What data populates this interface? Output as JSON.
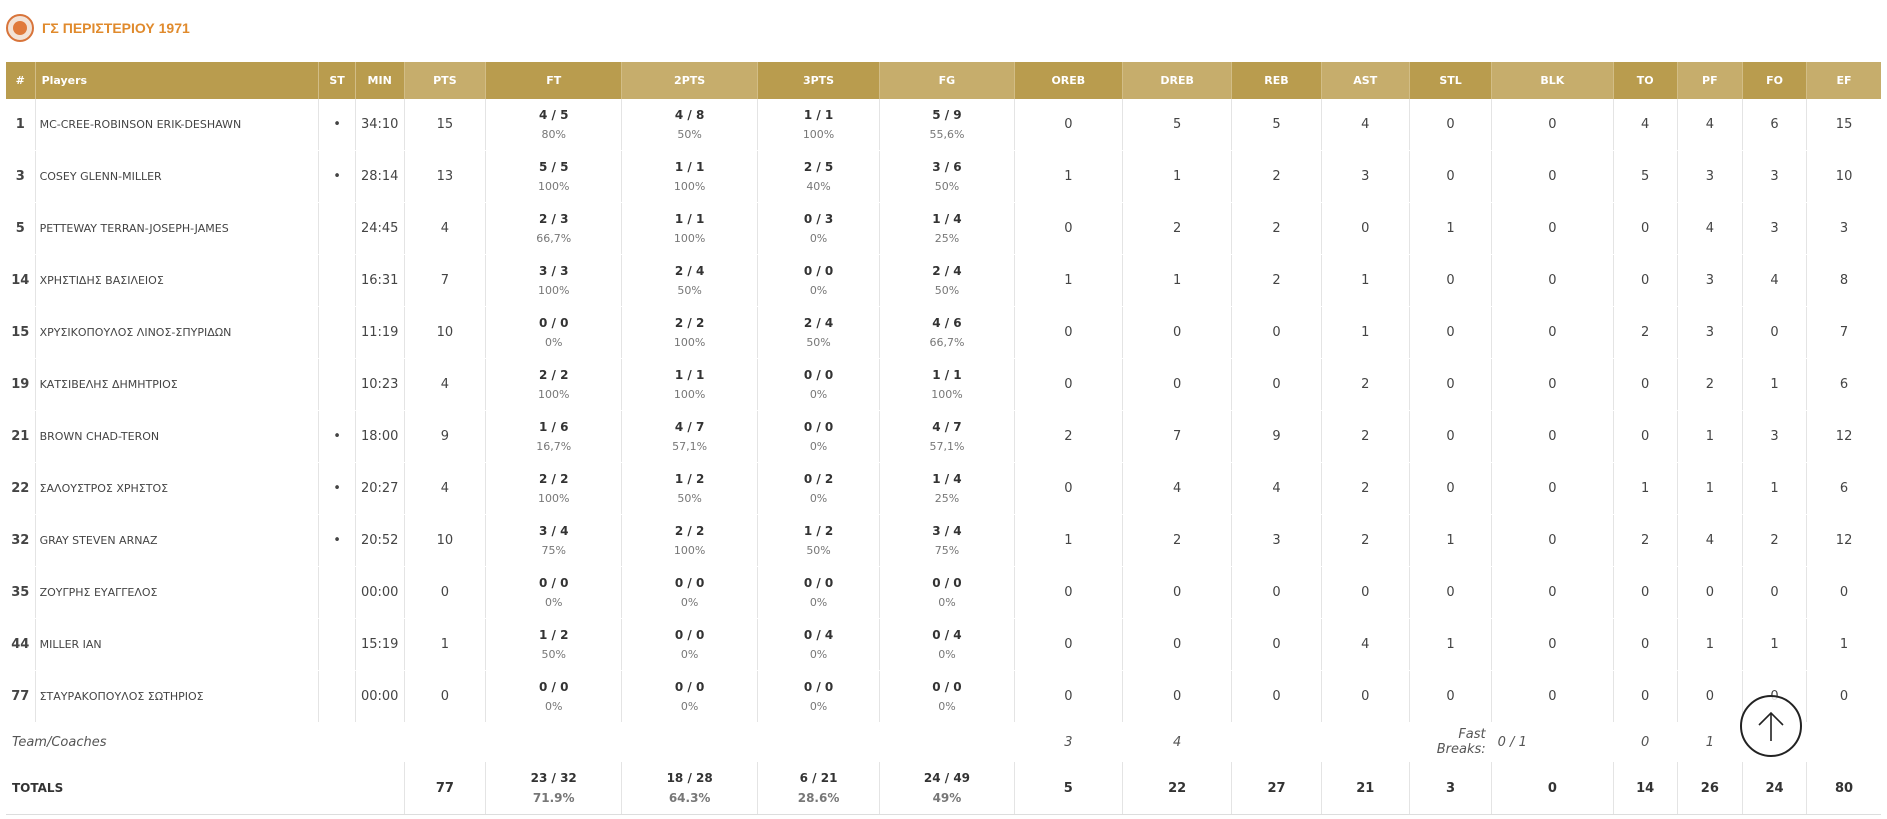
{
  "team": {
    "name": "ΓΣ ΠΕΡΙΣΤΕΡΙΟΥ 1971",
    "logo_icon": "team-logo-icon",
    "accent": "#e08a2c"
  },
  "header_color": "#b99c4e",
  "columns": [
    "#",
    "Players",
    "ST",
    "MIN",
    "PTS",
    "FT",
    "2PTS",
    "3PTS",
    "FG",
    "OREB",
    "DREB",
    "REB",
    "AST",
    "STL",
    "BLK",
    "TO",
    "PF",
    "FO",
    "EF"
  ],
  "players": [
    {
      "num": "1",
      "name": "MC-CREE-ROBINSON ERIK-DESHAWN",
      "st": "•",
      "min": "34:10",
      "pts": "15",
      "ft": "4 / 5",
      "ft_pct": "80%",
      "p2": "4 / 8",
      "p2_pct": "50%",
      "p3": "1 / 1",
      "p3_pct": "100%",
      "fg": "5 / 9",
      "fg_pct": "55,6%",
      "oreb": "0",
      "dreb": "5",
      "reb": "5",
      "ast": "4",
      "stl": "0",
      "blk": "0",
      "to": "4",
      "pf": "4",
      "fo": "6",
      "ef": "15"
    },
    {
      "num": "3",
      "name": "COSEY GLENN-MILLER",
      "st": "•",
      "min": "28:14",
      "pts": "13",
      "ft": "5 / 5",
      "ft_pct": "100%",
      "p2": "1 / 1",
      "p2_pct": "100%",
      "p3": "2 / 5",
      "p3_pct": "40%",
      "fg": "3 / 6",
      "fg_pct": "50%",
      "oreb": "1",
      "dreb": "1",
      "reb": "2",
      "ast": "3",
      "stl": "0",
      "blk": "0",
      "to": "5",
      "pf": "3",
      "fo": "3",
      "ef": "10"
    },
    {
      "num": "5",
      "name": "PETTEWAY TERRAN-JOSEPH-JAMES",
      "st": "",
      "min": "24:45",
      "pts": "4",
      "ft": "2 / 3",
      "ft_pct": "66,7%",
      "p2": "1 / 1",
      "p2_pct": "100%",
      "p3": "0 / 3",
      "p3_pct": "0%",
      "fg": "1 / 4",
      "fg_pct": "25%",
      "oreb": "0",
      "dreb": "2",
      "reb": "2",
      "ast": "0",
      "stl": "1",
      "blk": "0",
      "to": "0",
      "pf": "4",
      "fo": "3",
      "ef": "3"
    },
    {
      "num": "14",
      "name": "ΧΡΗΣΤΙΔΗΣ ΒΑΣΙΛΕΙΟΣ",
      "st": "",
      "min": "16:31",
      "pts": "7",
      "ft": "3 / 3",
      "ft_pct": "100%",
      "p2": "2 / 4",
      "p2_pct": "50%",
      "p3": "0 / 0",
      "p3_pct": "0%",
      "fg": "2 / 4",
      "fg_pct": "50%",
      "oreb": "1",
      "dreb": "1",
      "reb": "2",
      "ast": "1",
      "stl": "0",
      "blk": "0",
      "to": "0",
      "pf": "3",
      "fo": "4",
      "ef": "8"
    },
    {
      "num": "15",
      "name": "ΧΡΥΣΙΚΟΠΟΥΛΟΣ ΛΙΝΟΣ-ΣΠΥΡΙΔΩΝ",
      "st": "",
      "min": "11:19",
      "pts": "10",
      "ft": "0 / 0",
      "ft_pct": "0%",
      "p2": "2 / 2",
      "p2_pct": "100%",
      "p3": "2 / 4",
      "p3_pct": "50%",
      "fg": "4 / 6",
      "fg_pct": "66,7%",
      "oreb": "0",
      "dreb": "0",
      "reb": "0",
      "ast": "1",
      "stl": "0",
      "blk": "0",
      "to": "2",
      "pf": "3",
      "fo": "0",
      "ef": "7"
    },
    {
      "num": "19",
      "name": "ΚΑΤΣΙΒΕΛΗΣ ΔΗΜΗΤΡΙΟΣ",
      "st": "",
      "min": "10:23",
      "pts": "4",
      "ft": "2 / 2",
      "ft_pct": "100%",
      "p2": "1 / 1",
      "p2_pct": "100%",
      "p3": "0 / 0",
      "p3_pct": "0%",
      "fg": "1 / 1",
      "fg_pct": "100%",
      "oreb": "0",
      "dreb": "0",
      "reb": "0",
      "ast": "2",
      "stl": "0",
      "blk": "0",
      "to": "0",
      "pf": "2",
      "fo": "1",
      "ef": "6"
    },
    {
      "num": "21",
      "name": "BROWN CHAD-TERON",
      "st": "•",
      "min": "18:00",
      "pts": "9",
      "ft": "1 / 6",
      "ft_pct": "16,7%",
      "p2": "4 / 7",
      "p2_pct": "57,1%",
      "p3": "0 / 0",
      "p3_pct": "0%",
      "fg": "4 / 7",
      "fg_pct": "57,1%",
      "oreb": "2",
      "dreb": "7",
      "reb": "9",
      "ast": "2",
      "stl": "0",
      "blk": "0",
      "to": "0",
      "pf": "1",
      "fo": "3",
      "ef": "12"
    },
    {
      "num": "22",
      "name": "ΣΑΛΟΥΣΤΡΟΣ ΧΡΗΣΤΟΣ",
      "st": "•",
      "min": "20:27",
      "pts": "4",
      "ft": "2 / 2",
      "ft_pct": "100%",
      "p2": "1 / 2",
      "p2_pct": "50%",
      "p3": "0 / 2",
      "p3_pct": "0%",
      "fg": "1 / 4",
      "fg_pct": "25%",
      "oreb": "0",
      "dreb": "4",
      "reb": "4",
      "ast": "2",
      "stl": "0",
      "blk": "0",
      "to": "1",
      "pf": "1",
      "fo": "1",
      "ef": "6"
    },
    {
      "num": "32",
      "name": "GRAY STEVEN ARNAZ",
      "st": "•",
      "min": "20:52",
      "pts": "10",
      "ft": "3 / 4",
      "ft_pct": "75%",
      "p2": "2 / 2",
      "p2_pct": "100%",
      "p3": "1 / 2",
      "p3_pct": "50%",
      "fg": "3 / 4",
      "fg_pct": "75%",
      "oreb": "1",
      "dreb": "2",
      "reb": "3",
      "ast": "2",
      "stl": "1",
      "blk": "0",
      "to": "2",
      "pf": "4",
      "fo": "2",
      "ef": "12"
    },
    {
      "num": "35",
      "name": "ΖΟΥΓΡΗΣ ΕΥΑΓΓΕΛΟΣ",
      "st": "",
      "min": "00:00",
      "pts": "0",
      "ft": "0 / 0",
      "ft_pct": "0%",
      "p2": "0 / 0",
      "p2_pct": "0%",
      "p3": "0 / 0",
      "p3_pct": "0%",
      "fg": "0 / 0",
      "fg_pct": "0%",
      "oreb": "0",
      "dreb": "0",
      "reb": "0",
      "ast": "0",
      "stl": "0",
      "blk": "0",
      "to": "0",
      "pf": "0",
      "fo": "0",
      "ef": "0"
    },
    {
      "num": "44",
      "name": "MILLER IAN",
      "st": "",
      "min": "15:19",
      "pts": "1",
      "ft": "1 / 2",
      "ft_pct": "50%",
      "p2": "0 / 0",
      "p2_pct": "0%",
      "p3": "0 / 4",
      "p3_pct": "0%",
      "fg": "0 / 4",
      "fg_pct": "0%",
      "oreb": "0",
      "dreb": "0",
      "reb": "0",
      "ast": "4",
      "stl": "1",
      "blk": "0",
      "to": "0",
      "pf": "1",
      "fo": "1",
      "ef": "1"
    },
    {
      "num": "77",
      "name": "ΣΤΑΥΡΑΚΟΠΟΥΛΟΣ ΣΩΤΗΡΙΟΣ",
      "st": "",
      "min": "00:00",
      "pts": "0",
      "ft": "0 / 0",
      "ft_pct": "0%",
      "p2": "0 / 0",
      "p2_pct": "0%",
      "p3": "0 / 0",
      "p3_pct": "0%",
      "fg": "0 / 0",
      "fg_pct": "0%",
      "oreb": "0",
      "dreb": "0",
      "reb": "0",
      "ast": "0",
      "stl": "0",
      "blk": "0",
      "to": "0",
      "pf": "0",
      "fo": "0",
      "ef": "0"
    }
  ],
  "team_coaches": {
    "label": "Team/Coaches",
    "oreb": "3",
    "dreb": "4",
    "fast_breaks_label": "Fast Breaks:",
    "fast_breaks": "0 / 1",
    "to": "0",
    "pf": "1"
  },
  "totals": {
    "label": "TOTALS",
    "pts": "77",
    "ft": "23 / 32",
    "ft_pct": "71.9%",
    "p2": "18 / 28",
    "p2_pct": "64.3%",
    "p3": "6 / 21",
    "p3_pct": "28.6%",
    "fg": "24 / 49",
    "fg_pct": "49%",
    "oreb": "5",
    "dreb": "22",
    "reb": "27",
    "ast": "21",
    "stl": "3",
    "blk": "0",
    "to": "14",
    "pf": "26",
    "fo": "24",
    "ef": "80"
  },
  "scroll_top_icon": "arrow-up-icon"
}
